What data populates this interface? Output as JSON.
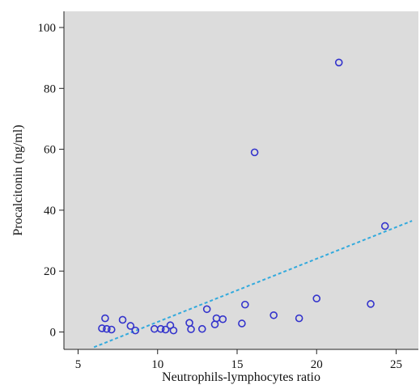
{
  "chart_data": {
    "type": "scatter",
    "title": "",
    "xlabel": "Neutrophils-lymphocytes ratio",
    "ylabel": "Procalcitonin (ng/ml)",
    "xlim": [
      3.5,
      26
    ],
    "ylim": [
      -6,
      105
    ],
    "x_ticks": [
      5,
      10,
      15,
      20,
      25
    ],
    "y_ticks": [
      0,
      20,
      40,
      60,
      80,
      100
    ],
    "grid": false,
    "background_color": "#dcdcdc",
    "marker_color": "#3333cc",
    "trendline_color": "#33aadd",
    "series": [
      {
        "points": [
          {
            "x": 6.5,
            "y": 1.2
          },
          {
            "x": 6.7,
            "y": 4.5
          },
          {
            "x": 6.8,
            "y": 1.0
          },
          {
            "x": 7.1,
            "y": 0.8
          },
          {
            "x": 7.8,
            "y": 4.0
          },
          {
            "x": 8.3,
            "y": 2.0
          },
          {
            "x": 8.6,
            "y": 0.5
          },
          {
            "x": 9.8,
            "y": 1.0
          },
          {
            "x": 10.2,
            "y": 1.0
          },
          {
            "x": 10.5,
            "y": 0.8
          },
          {
            "x": 10.8,
            "y": 2.2
          },
          {
            "x": 11.0,
            "y": 0.5
          },
          {
            "x": 12.0,
            "y": 3.0
          },
          {
            "x": 12.1,
            "y": 0.9
          },
          {
            "x": 12.8,
            "y": 1.0
          },
          {
            "x": 13.1,
            "y": 7.5
          },
          {
            "x": 13.6,
            "y": 2.5
          },
          {
            "x": 13.7,
            "y": 4.5
          },
          {
            "x": 14.1,
            "y": 4.2
          },
          {
            "x": 15.3,
            "y": 2.8
          },
          {
            "x": 15.5,
            "y": 9.0
          },
          {
            "x": 16.1,
            "y": 59.0
          },
          {
            "x": 17.3,
            "y": 5.5
          },
          {
            "x": 18.9,
            "y": 4.5
          },
          {
            "x": 20.0,
            "y": 11.0
          },
          {
            "x": 21.4,
            "y": 88.5
          },
          {
            "x": 23.4,
            "y": 9.2
          },
          {
            "x": 24.3,
            "y": 34.8
          }
        ]
      }
    ],
    "trendline": {
      "x": [
        6.0,
        26.0
      ],
      "y": [
        -5.0,
        36.5
      ]
    }
  }
}
